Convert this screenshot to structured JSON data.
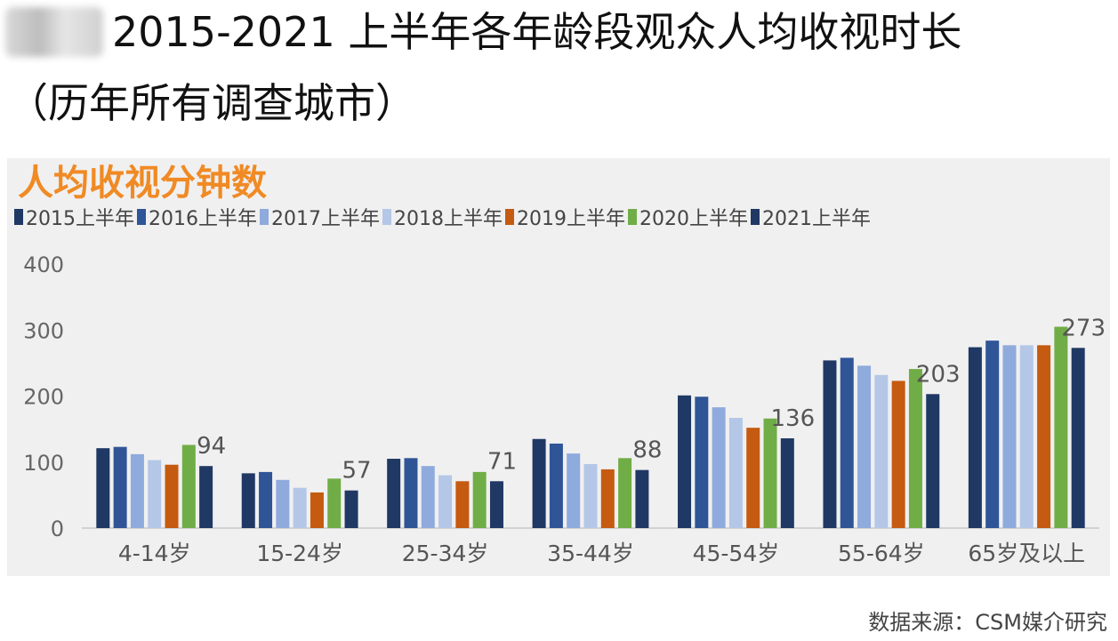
{
  "header": {
    "title_line1": "2015-2021 上半年各年龄段观众人均收视时长",
    "title_line2": "（历年所有调查城市）"
  },
  "source": "数据来源：CSM媒介研究",
  "chart_data": {
    "type": "bar",
    "title": "人均收视分钟数",
    "categories": [
      "4-14岁",
      "15-24岁",
      "25-34岁",
      "35-44岁",
      "45-54岁",
      "55-64岁",
      "65岁及以上"
    ],
    "ylim": [
      0,
      400
    ],
    "yticks": [
      0,
      100,
      200,
      300,
      400
    ],
    "grid": false,
    "legend_position": "top",
    "series": [
      {
        "name": "2015上半年",
        "color": "#1f3864",
        "values": [
          121,
          83,
          105,
          135,
          201,
          254,
          274
        ]
      },
      {
        "name": "2016上半年",
        "color": "#2f5597",
        "values": [
          123,
          85,
          106,
          128,
          199,
          258,
          284
        ]
      },
      {
        "name": "2017上半年",
        "color": "#8faadc",
        "values": [
          112,
          73,
          94,
          113,
          183,
          246,
          277
        ]
      },
      {
        "name": "2018上半年",
        "color": "#b4c7e7",
        "values": [
          103,
          61,
          80,
          97,
          167,
          232,
          277
        ]
      },
      {
        "name": "2019上半年",
        "color": "#c55a11",
        "values": [
          96,
          54,
          71,
          89,
          152,
          223,
          277
        ]
      },
      {
        "name": "2020上半年",
        "color": "#70ad47",
        "values": [
          126,
          75,
          85,
          106,
          166,
          241,
          305
        ]
      },
      {
        "name": "2021上半年",
        "color": "#203864",
        "values": [
          94,
          57,
          71,
          88,
          136,
          203,
          273
        ]
      }
    ],
    "data_labels": [
      "94",
      "57",
      "71",
      "88",
      "136",
      "203",
      "273"
    ]
  }
}
